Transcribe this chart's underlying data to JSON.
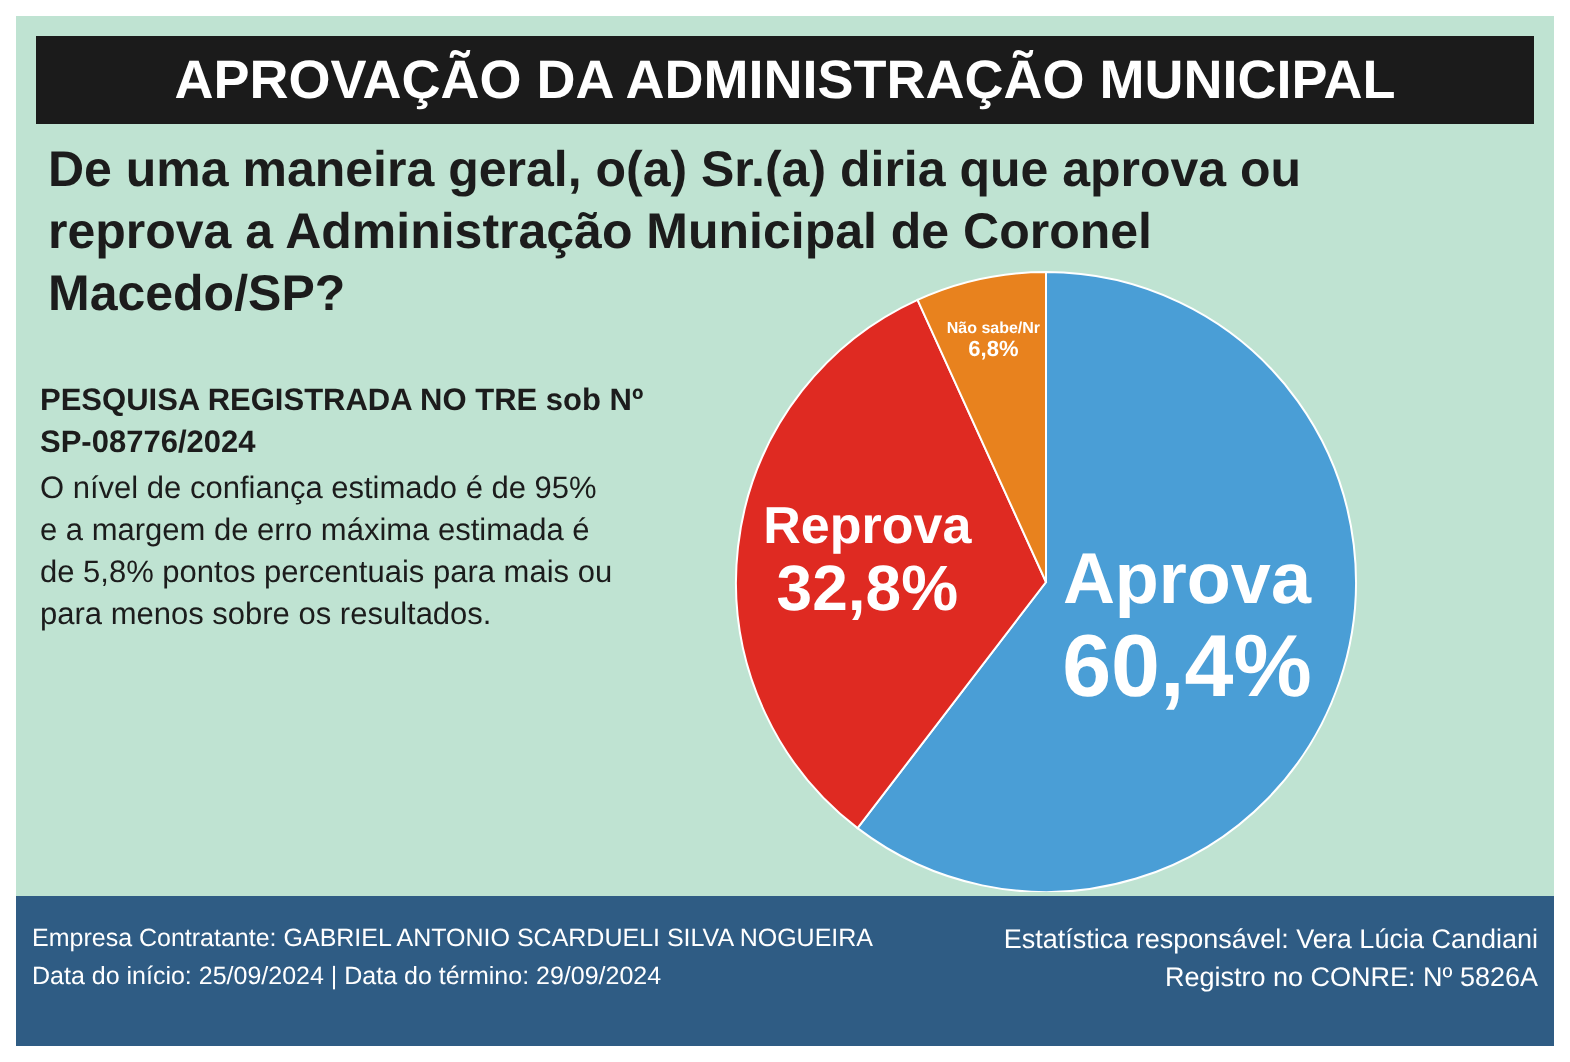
{
  "chart_data": {
    "type": "pie",
    "title": "APROVAÇÃO DA ADMINISTRAÇÃO MUNICIPAL",
    "subtitle": "De uma maneira geral, o(a) Sr.(a) diria que aprova ou reprova a Administração Municipal de Coronel Macedo/SP?",
    "categories": [
      "Aprova",
      "Reprova",
      "Não sabe/Nr"
    ],
    "values": [
      60.4,
      32.8,
      6.8
    ],
    "colors": [
      "#4a9ed6",
      "#df2a22",
      "#e8821e"
    ],
    "value_labels": [
      "60,4%",
      "32,8%",
      "6,8%"
    ],
    "legend": false,
    "annotations": [
      "PESQUISA REGISTRADA NO TRE sob Nº SP-08776/2024",
      "O nível de confiança estimado é de 95% e a margem de erro máxima estimada é de 5,8% pontos percentuais para mais ou para menos sobre os resultados.",
      "Empresa Contratante: GABRIEL ANTONIO SCARDUELI SILVA NOGUEIRA",
      "Data do início: 25/09/2024 | Data do término: 29/09/2024",
      "Estatística responsável: Vera Lúcia Candiani",
      "Registro no CONRE: Nº 5826A"
    ]
  }
}
